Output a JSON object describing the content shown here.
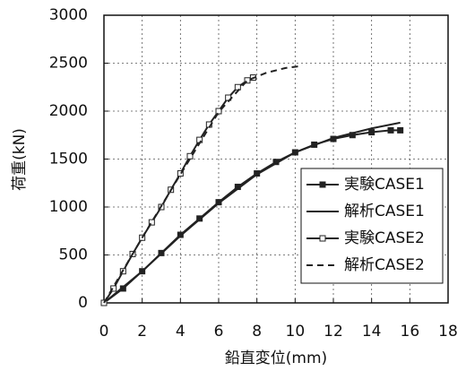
{
  "chart_data": {
    "type": "line",
    "x_label": "鉛直変位(mm)",
    "y_label": "荷重(kN)",
    "xlim": [
      0,
      18
    ],
    "xticks": [
      0,
      2,
      4,
      6,
      8,
      10,
      12,
      14,
      16,
      18
    ],
    "ylim": [
      0,
      3000
    ],
    "yticks": [
      0,
      500,
      1000,
      1500,
      2000,
      2500,
      3000
    ],
    "grid": true,
    "legend": "lower right",
    "series": [
      {
        "name": "実験CASE1",
        "color": "#222222",
        "marker": "filled-square",
        "dash": false,
        "x": [
          0,
          1,
          2,
          3,
          4,
          5,
          6,
          7,
          8,
          9,
          10,
          11,
          12,
          13,
          14,
          15,
          15.5
        ],
        "values": [
          0,
          150,
          330,
          520,
          710,
          880,
          1050,
          1210,
          1350,
          1470,
          1570,
          1650,
          1710,
          1750,
          1780,
          1800,
          1800
        ]
      },
      {
        "name": "解析CASE1",
        "color": "#222222",
        "marker": null,
        "dash": false,
        "x": [
          0,
          2,
          4,
          6,
          8,
          10,
          12,
          14,
          15.5
        ],
        "values": [
          0,
          330,
          700,
          1040,
          1340,
          1570,
          1720,
          1820,
          1880
        ]
      },
      {
        "name": "実験CASE2",
        "color": "#222222",
        "marker": "open-square",
        "dash": false,
        "x": [
          0,
          0.5,
          1,
          1.5,
          2,
          2.5,
          3,
          3.5,
          4,
          4.5,
          5,
          5.5,
          6,
          6.5,
          7,
          7.5,
          7.8
        ],
        "values": [
          0,
          150,
          330,
          510,
          680,
          840,
          1000,
          1180,
          1350,
          1530,
          1700,
          1860,
          2000,
          2140,
          2250,
          2320,
          2350
        ]
      },
      {
        "name": "解析CASE2",
        "color": "#222222",
        "marker": null,
        "dash": true,
        "x": [
          0,
          2,
          4,
          6,
          7.5,
          8.5,
          9.5,
          10.3
        ],
        "values": [
          0,
          680,
          1340,
          1990,
          2320,
          2400,
          2450,
          2470
        ]
      }
    ]
  }
}
